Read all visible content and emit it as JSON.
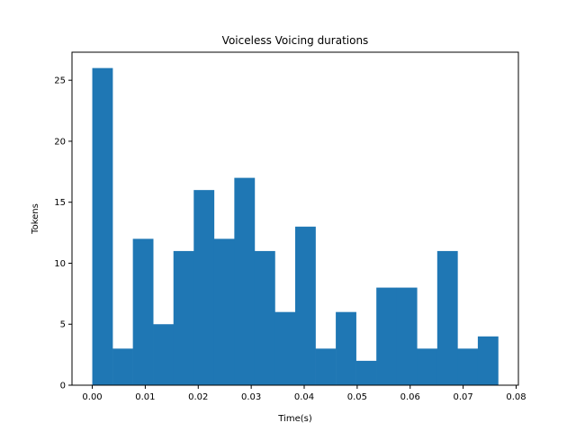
{
  "chart_data": {
    "type": "bar",
    "title": "Voiceless  Voicing durations",
    "xlabel": "Time(s)",
    "ylabel": "Tokens",
    "bin_edges": [
      0.0,
      0.00383,
      0.00766,
      0.01149,
      0.01532,
      0.01915,
      0.02298,
      0.02681,
      0.03064,
      0.03447,
      0.0383,
      0.04213,
      0.04596,
      0.04979,
      0.05362,
      0.05745,
      0.06128,
      0.06511,
      0.06894,
      0.07277,
      0.0766
    ],
    "values": [
      26,
      3,
      12,
      5,
      11,
      16,
      12,
      17,
      11,
      6,
      13,
      3,
      6,
      2,
      8,
      8,
      3,
      11,
      3,
      4
    ],
    "xlim": [
      -0.00383,
      0.08043
    ],
    "ylim": [
      0,
      27.3
    ],
    "xticks": [
      0.0,
      0.01,
      0.02,
      0.03,
      0.04,
      0.05,
      0.06,
      0.07,
      0.08
    ],
    "xtick_labels": [
      "0.00",
      "0.01",
      "0.02",
      "0.03",
      "0.04",
      "0.05",
      "0.06",
      "0.07",
      "0.08"
    ],
    "yticks": [
      0,
      5,
      10,
      15,
      20,
      25
    ],
    "ytick_labels": [
      "0",
      "5",
      "10",
      "15",
      "20",
      "25"
    ],
    "bar_color": "#1f77b4",
    "grid": false
  }
}
